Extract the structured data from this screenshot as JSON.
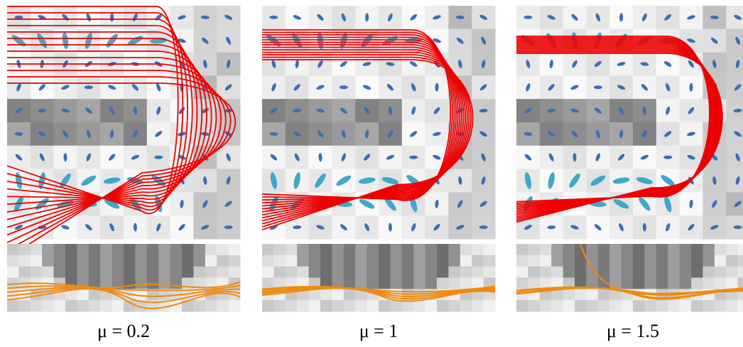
{
  "panels": [
    {
      "caption": "μ = 0.2"
    },
    {
      "caption": "μ = 1"
    },
    {
      "caption": "μ = 1.5"
    }
  ]
}
